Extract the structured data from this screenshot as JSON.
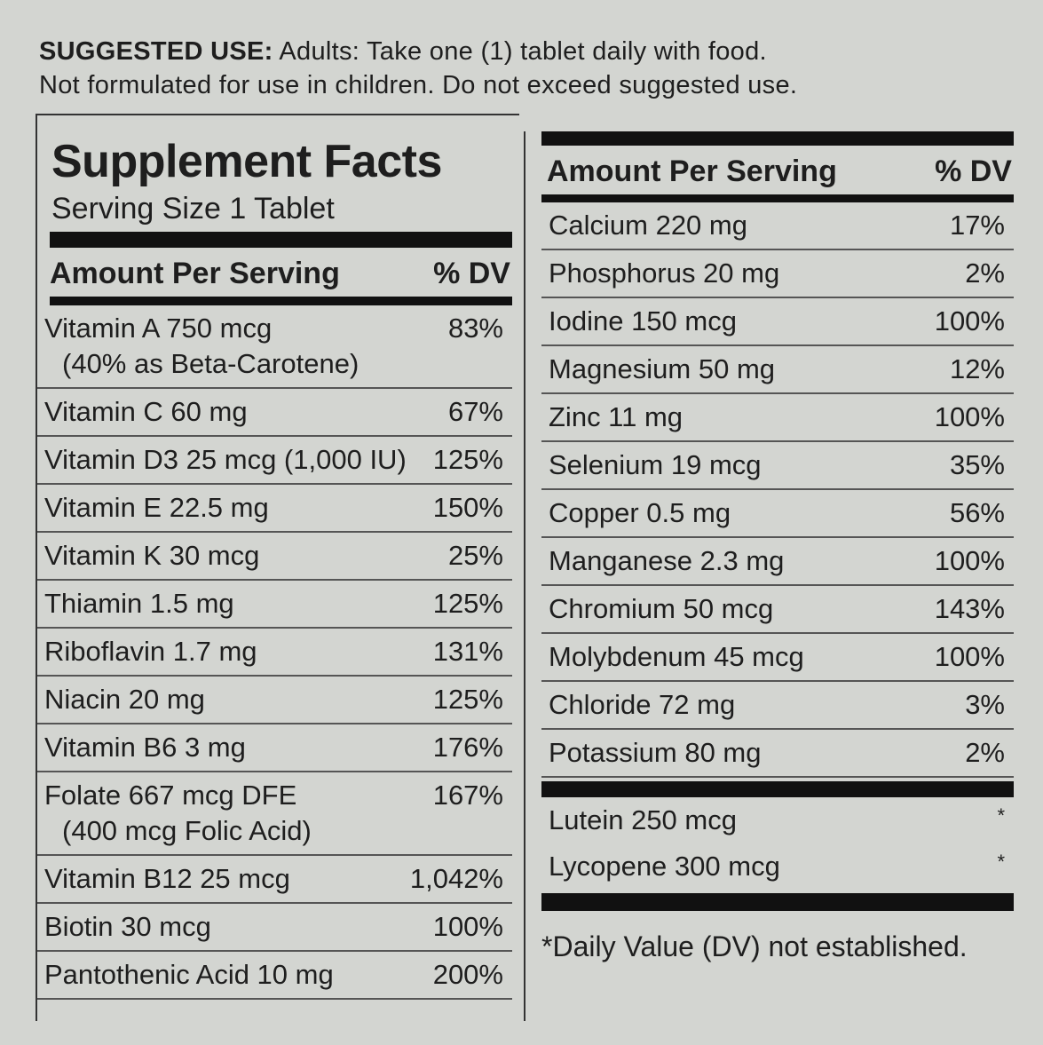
{
  "header": {
    "label": "SUGGESTED USE:",
    "line1": "Adults: Take one (1) tablet daily with food.",
    "line2": "Not formulated for use in children. Do not exceed suggested use."
  },
  "left_panel": {
    "title": "Supplement Facts",
    "serving_size": "Serving Size 1 Tablet",
    "col_amount": "Amount Per Serving",
    "col_dv": "% DV",
    "rows": [
      {
        "nutrient": "Vitamin A 750 mcg",
        "note": "(40% as Beta-Carotene)",
        "dv": "83%"
      },
      {
        "nutrient": "Vitamin C 60 mg",
        "dv": "67%"
      },
      {
        "nutrient": "Vitamin D3 25 mcg (1,000 IU)",
        "dv": "125%"
      },
      {
        "nutrient": "Vitamin E 22.5 mg",
        "dv": "150%"
      },
      {
        "nutrient": "Vitamin K 30 mcg",
        "dv": "25%"
      },
      {
        "nutrient": "Thiamin 1.5 mg",
        "dv": "125%"
      },
      {
        "nutrient": "Riboflavin 1.7 mg",
        "dv": "131%"
      },
      {
        "nutrient": "Niacin 20 mg",
        "dv": "125%"
      },
      {
        "nutrient": "Vitamin B6 3 mg",
        "dv": "176%"
      },
      {
        "nutrient": "Folate 667 mcg DFE",
        "note": "(400 mcg Folic Acid)",
        "dv": "167%"
      },
      {
        "nutrient": "Vitamin B12 25 mcg",
        "dv": "1,042%"
      },
      {
        "nutrient": "Biotin 30 mcg",
        "dv": "100%"
      },
      {
        "nutrient": "Pantothenic Acid 10 mg",
        "dv": "200%"
      }
    ]
  },
  "right_panel": {
    "col_amount": "Amount Per Serving",
    "col_dv": "% DV",
    "rows": [
      {
        "nutrient": "Calcium 220 mg",
        "dv": "17%"
      },
      {
        "nutrient": "Phosphorus 20 mg",
        "dv": "2%"
      },
      {
        "nutrient": "Iodine 150 mcg",
        "dv": "100%"
      },
      {
        "nutrient": "Magnesium 50 mg",
        "dv": "12%"
      },
      {
        "nutrient": "Zinc 11 mg",
        "dv": "100%"
      },
      {
        "nutrient": "Selenium 19 mcg",
        "dv": "35%"
      },
      {
        "nutrient": "Copper 0.5 mg",
        "dv": "56%"
      },
      {
        "nutrient": "Manganese 2.3 mg",
        "dv": "100%"
      },
      {
        "nutrient": "Chromium 50 mcg",
        "dv": "143%"
      },
      {
        "nutrient": "Molybdenum 45 mcg",
        "dv": "100%"
      },
      {
        "nutrient": "Chloride 72 mg",
        "dv": "3%"
      },
      {
        "nutrient": "Potassium 80 mg",
        "dv": "2%"
      }
    ],
    "extra_rows": [
      {
        "nutrient": "Lutein 250 mcg",
        "dv": "*"
      },
      {
        "nutrient": "Lycopene 300 mcg",
        "dv": "*"
      }
    ],
    "footnote": "*Daily Value (DV) not established."
  }
}
